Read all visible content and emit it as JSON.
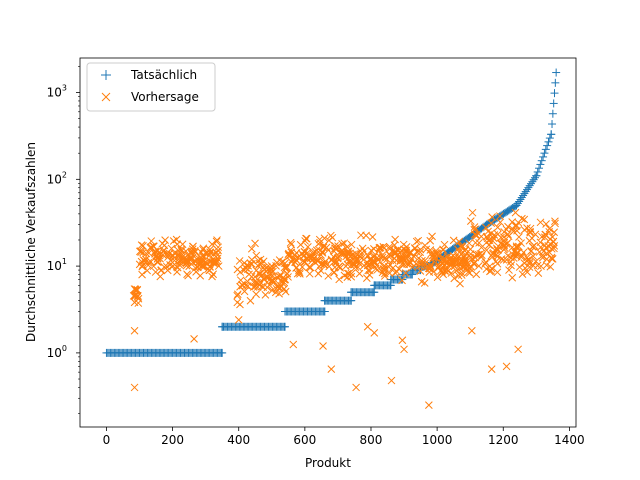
{
  "chart_data": {
    "type": "scatter",
    "xlabel": "Produkt",
    "ylabel": "Durchschnittliche Verkaufszahlen",
    "xlim": [
      -80,
      1420
    ],
    "ylim": [
      0.14,
      2500
    ],
    "yscale": "log",
    "grid": false,
    "legend_position": "upper left",
    "xticks": [
      {
        "value": 0,
        "label": "0"
      },
      {
        "value": 200,
        "label": "200"
      },
      {
        "value": 400,
        "label": "400"
      },
      {
        "value": 600,
        "label": "600"
      },
      {
        "value": 800,
        "label": "800"
      },
      {
        "value": 1000,
        "label": "1000"
      },
      {
        "value": 1200,
        "label": "1200"
      },
      {
        "value": 1400,
        "label": "1400"
      }
    ],
    "yticks": [
      {
        "value": 1,
        "base": "10",
        "exp": "0"
      },
      {
        "value": 10,
        "base": "10",
        "exp": "1"
      },
      {
        "value": 100,
        "base": "10",
        "exp": "2"
      },
      {
        "value": 1000,
        "base": "10",
        "exp": "3"
      }
    ],
    "series": [
      {
        "name": "Tatsächlich",
        "marker": "+",
        "color": "#1f77b4",
        "segments": [
          {
            "x": [
              0,
              350
            ],
            "y": 1
          },
          {
            "x": 350,
            "y": [
              1,
              2
            ]
          },
          {
            "x": [
              350,
              540
            ],
            "y": 2
          },
          {
            "x": 540,
            "y": [
              2,
              3
            ]
          },
          {
            "x": [
              540,
              660
            ],
            "y": 3
          },
          {
            "x": 660,
            "y": [
              3,
              4
            ]
          },
          {
            "x": [
              660,
              740
            ],
            "y": 4
          },
          {
            "x": 740,
            "y": [
              4,
              5
            ]
          },
          {
            "x": [
              740,
              810
            ],
            "y": 5
          },
          {
            "x": 810,
            "y": [
              5,
              6
            ]
          },
          {
            "x": [
              810,
              860
            ],
            "y": 6
          },
          {
            "x": 860,
            "y": [
              6,
              7
            ]
          },
          {
            "x": [
              860,
              895
            ],
            "y": 7
          },
          {
            "x": 895,
            "y": [
              7,
              8
            ]
          },
          {
            "x": [
              895,
              925
            ],
            "y": 8
          },
          {
            "x": 925,
            "y": [
              8,
              9
            ]
          },
          {
            "x": [
              925,
              950
            ],
            "y": 9
          },
          {
            "x": 950,
            "y": [
              9,
              10
            ]
          },
          {
            "x": [
              950,
              975
            ],
            "y": 10
          },
          {
            "x": [
              975,
              1150
            ],
            "y": [
              10,
              30
            ],
            "curve": "exponential"
          },
          {
            "x": [
              1150,
              1240
            ],
            "y": [
              30,
              50
            ],
            "curve": "exponential"
          },
          {
            "x": [
              1240,
              1300
            ],
            "y": [
              50,
              110
            ],
            "curve": "exponential"
          },
          {
            "x": [
              1300,
              1345
            ],
            "y": [
              110,
              330
            ],
            "curve": "exponential"
          },
          {
            "x": [
              1345,
              1360
            ],
            "y": [
              330,
              1700
            ],
            "curve": "exponential"
          }
        ]
      },
      {
        "name": "Vorhersage",
        "marker": "x",
        "color": "#ff7f0e",
        "x_range": [
          80,
          1360
        ],
        "typical_range": [
          10,
          30
        ],
        "clusters": [
          {
            "x": [
              80,
              100
            ],
            "y": [
              3,
              8
            ]
          },
          {
            "x": [
              100,
              340
            ],
            "y": [
              6,
              30
            ]
          },
          {
            "x": [
              395,
              550
            ],
            "y": [
              2.5,
              30
            ]
          },
          {
            "x": [
              550,
              1100
            ],
            "y": [
              5,
              35
            ]
          },
          {
            "x": [
              1100,
              1360
            ],
            "y": [
              5,
              75
            ]
          }
        ],
        "outliers": [
          {
            "x": 85,
            "y": 0.4
          },
          {
            "x": 85,
            "y": 1.8
          },
          {
            "x": 265,
            "y": 1.45
          },
          {
            "x": 400,
            "y": 2.4
          },
          {
            "x": 565,
            "y": 1.25
          },
          {
            "x": 655,
            "y": 1.2
          },
          {
            "x": 680,
            "y": 0.65
          },
          {
            "x": 755,
            "y": 0.4
          },
          {
            "x": 790,
            "y": 2
          },
          {
            "x": 810,
            "y": 1.7
          },
          {
            "x": 862,
            "y": 0.48
          },
          {
            "x": 895,
            "y": 1.4
          },
          {
            "x": 900,
            "y": 1.1
          },
          {
            "x": 975,
            "y": 0.25
          },
          {
            "x": 1105,
            "y": 1.8
          },
          {
            "x": 1165,
            "y": 0.65
          },
          {
            "x": 1210,
            "y": 0.7
          },
          {
            "x": 1245,
            "y": 1.1
          }
        ]
      }
    ]
  }
}
